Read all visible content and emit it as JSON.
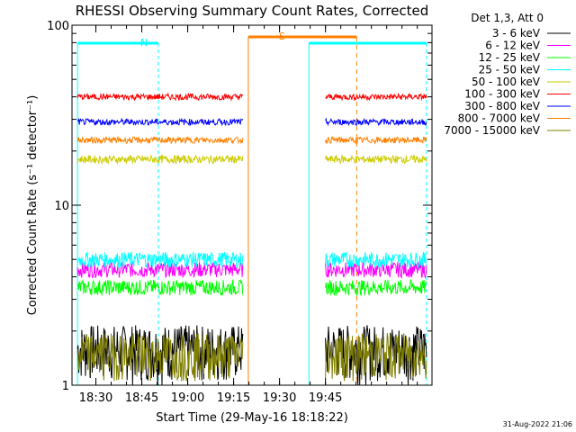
{
  "chart_data": {
    "type": "line",
    "title": "RHESSI Observing Summary Count Rates, Corrected",
    "xlabel": "Start Time (29-May-16 18:18:22)",
    "ylabel": "Corrected Count Rate (s⁻¹ detector⁻¹)",
    "yscale": "log",
    "ylim": [
      1,
      100
    ],
    "xlim_minutes": [
      18.37,
      20.33
    ],
    "x_ticks": [
      "18:30",
      "18:45",
      "19:00",
      "19:15",
      "19:30",
      "19:45"
    ],
    "y_ticks": [
      "1",
      "10",
      "100"
    ],
    "legend_title": "Det 1,3, Att 0",
    "legend_position": "right",
    "series": [
      {
        "name": "3 - 6 keV",
        "color": "#000000",
        "level": 1.6,
        "noise": 0.35
      },
      {
        "name": "6 - 12 keV",
        "color": "#ff00ff",
        "level": 4.4,
        "noise": 0.1
      },
      {
        "name": "12 - 25 keV",
        "color": "#00ff00",
        "level": 3.5,
        "noise": 0.1
      },
      {
        "name": "25 - 50 keV",
        "color": "#00ffff",
        "level": 5.0,
        "noise": 0.1
      },
      {
        "name": "50 - 100 keV",
        "color": "#cccc00",
        "level": 18.0,
        "noise": 0.05
      },
      {
        "name": "100 - 300 keV",
        "color": "#ff0000",
        "level": 40.0,
        "noise": 0.04
      },
      {
        "name": "300 - 800 keV",
        "color": "#0000ff",
        "level": 29.0,
        "noise": 0.04
      },
      {
        "name": "800 - 7000 keV",
        "color": "#ff8000",
        "level": 23.0,
        "noise": 0.04
      },
      {
        "name": "7000 - 15000 keV",
        "color": "#808000",
        "level": 1.5,
        "noise": 0.3
      }
    ],
    "segments_minutes": [
      [
        18.4,
        19.3
      ],
      [
        19.75,
        20.3
      ]
    ],
    "night_bars": [
      [
        18.4,
        18.84
      ],
      [
        19.66,
        20.3
      ]
    ],
    "night_label": "N",
    "saa_bar": [
      19.33,
      19.92
    ],
    "saa_label": "S",
    "footer": "31-Aug-2022 21:06"
  }
}
